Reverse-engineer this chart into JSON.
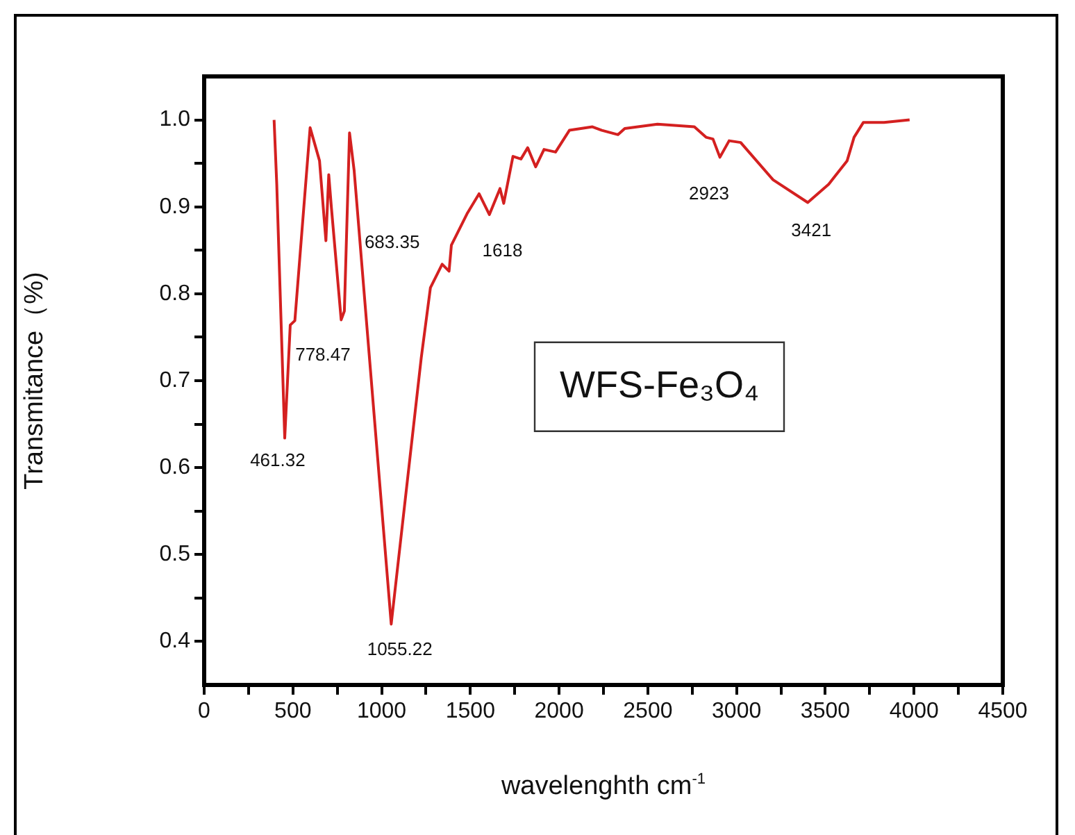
{
  "chart_data": {
    "type": "line",
    "title": "WFS-Fe₃O₄",
    "xlabel": "wavelenghth cm$^{-1}$",
    "ylabel": "Transmitance（%)",
    "xlim": [
      0,
      4500
    ],
    "ylim": [
      0.35,
      1.05
    ],
    "xticks": [
      0,
      {
        "value": 250,
        "label": null
      },
      500,
      {
        "value": 750,
        "label": null
      },
      1000,
      {
        "value": 1250,
        "label": null
      },
      1500,
      {
        "value": 1750,
        "label": null
      },
      2000,
      {
        "value": 2250,
        "label": null
      },
      2500,
      {
        "value": 2750,
        "label": null
      },
      3000,
      {
        "value": 3250,
        "label": null
      },
      3500,
      {
        "value": 3750,
        "label": null
      },
      4000,
      {
        "value": 4250,
        "label": null
      },
      4500
    ],
    "yticks": [
      {
        "value": 0.4,
        "label": "0.4"
      },
      {
        "value": 0.45,
        "label": null
      },
      {
        "value": 0.5,
        "label": "0.5"
      },
      {
        "value": 0.55,
        "label": null
      },
      {
        "value": 0.6,
        "label": "0.6"
      },
      {
        "value": 0.65,
        "label": null
      },
      {
        "value": 0.7,
        "label": "0.7"
      },
      {
        "value": 0.75,
        "label": null
      },
      {
        "value": 0.8,
        "label": "0.8"
      },
      {
        "value": 0.85,
        "label": null
      },
      {
        "value": 0.9,
        "label": "0.9"
      },
      {
        "value": 0.95,
        "label": null
      },
      {
        "value": 1.0,
        "label": "1.0"
      }
    ],
    "grid": false,
    "legend": false,
    "marker": "none",
    "line_style": "solid",
    "series": [
      {
        "color": "#d42020",
        "x": [
          394,
          409,
          454,
          485,
          511,
          597,
          650,
          686,
          702,
          717,
          772,
          790,
          819,
          845,
          1054,
          1145,
          1223,
          1275,
          1341,
          1380,
          1393,
          1484,
          1549,
          1607,
          1667,
          1688,
          1740,
          1785,
          1823,
          1868,
          1915,
          1980,
          2058,
          2188,
          2241,
          2332,
          2370,
          2554,
          2762,
          2828,
          2867,
          2906,
          2958,
          3023,
          3206,
          3401,
          3519,
          3623,
          3662,
          3714,
          3831,
          3975
        ],
        "values": [
          1.0,
          0.926,
          0.634,
          0.764,
          0.769,
          0.991,
          0.953,
          0.861,
          0.937,
          0.899,
          0.77,
          0.78,
          0.985,
          0.942,
          0.42,
          0.585,
          0.726,
          0.807,
          0.834,
          0.826,
          0.856,
          0.893,
          0.915,
          0.891,
          0.921,
          0.904,
          0.958,
          0.955,
          0.968,
          0.946,
          0.966,
          0.963,
          0.988,
          0.992,
          0.988,
          0.983,
          0.99,
          0.995,
          0.992,
          0.98,
          0.978,
          0.957,
          0.976,
          0.974,
          0.931,
          0.905,
          0.926,
          0.953,
          0.98,
          0.997,
          0.997,
          1.0
        ]
      }
    ],
    "annotations": [
      {
        "text": "461.32",
        "x": 461.32,
        "y": 0.634
      },
      {
        "text": "683.35",
        "x": 683.35,
        "y": 0.861
      },
      {
        "text": "778.47",
        "x": 778.47,
        "y": 0.77
      },
      {
        "text": "1055.22",
        "x": 1055.22,
        "y": 0.42
      },
      {
        "text": "1618",
        "x": 1618,
        "y": 0.891
      },
      {
        "text": "2923",
        "x": 2923,
        "y": 0.957
      },
      {
        "text": "3421",
        "x": 3421,
        "y": 0.905
      }
    ]
  }
}
